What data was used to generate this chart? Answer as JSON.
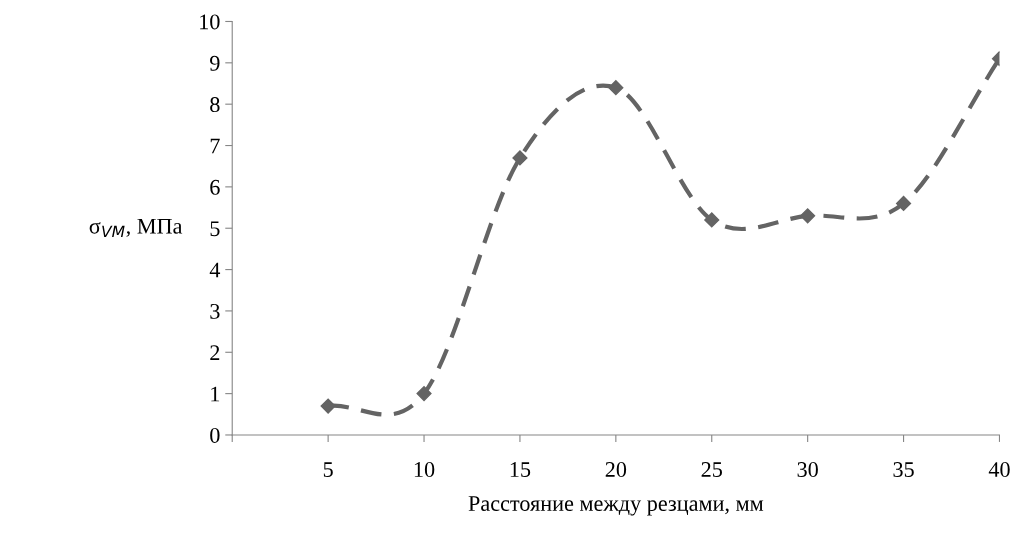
{
  "chart_data": {
    "type": "line",
    "xlabel": "Расстояние между резцами, мм",
    "ylabel": "σ$_{VM}$, МПа",
    "x": [
      5,
      10,
      15,
      20,
      25,
      30,
      35,
      40
    ],
    "series": [
      {
        "color": "#646464",
        "values": [
          0.7,
          1.0,
          6.7,
          8.4,
          5.2,
          5.3,
          5.6,
          9.1
        ]
      }
    ],
    "xlim": [
      0,
      40
    ],
    "xticks": [
      {
        "value": 0,
        "label": null
      },
      5,
      10,
      15,
      20,
      25,
      30,
      35,
      40
    ],
    "ylim": [
      0,
      10
    ],
    "yticks": [
      0,
      1,
      2,
      3,
      4,
      5,
      6,
      7,
      8,
      9,
      10
    ],
    "grid": false,
    "marker": "diamond",
    "line_style": "dashed"
  }
}
